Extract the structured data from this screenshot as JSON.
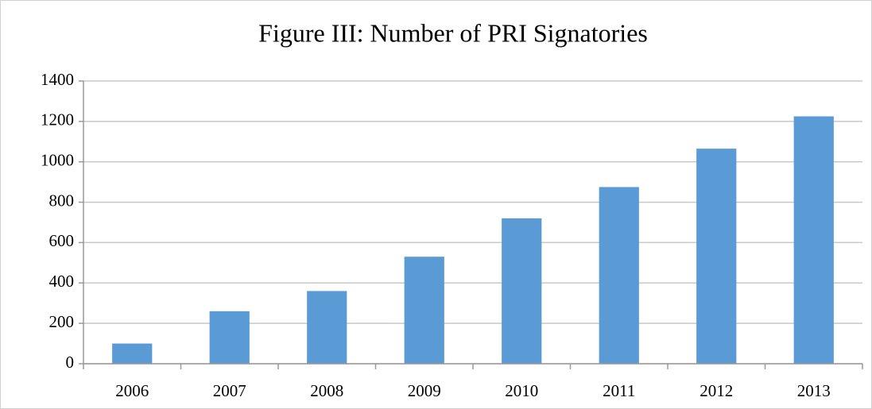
{
  "chart_data": {
    "type": "bar",
    "title": "Figure III: Number of PRI Signatories",
    "categories": [
      "2006",
      "2007",
      "2008",
      "2009",
      "2010",
      "2011",
      "2012",
      "2013"
    ],
    "values": [
      100,
      260,
      360,
      530,
      720,
      875,
      1065,
      1225
    ],
    "color": "#5b9bd5",
    "ylim": [
      0,
      1400
    ],
    "yticks": [
      0,
      200,
      400,
      600,
      800,
      1000,
      1200,
      1400
    ],
    "grid": true
  }
}
